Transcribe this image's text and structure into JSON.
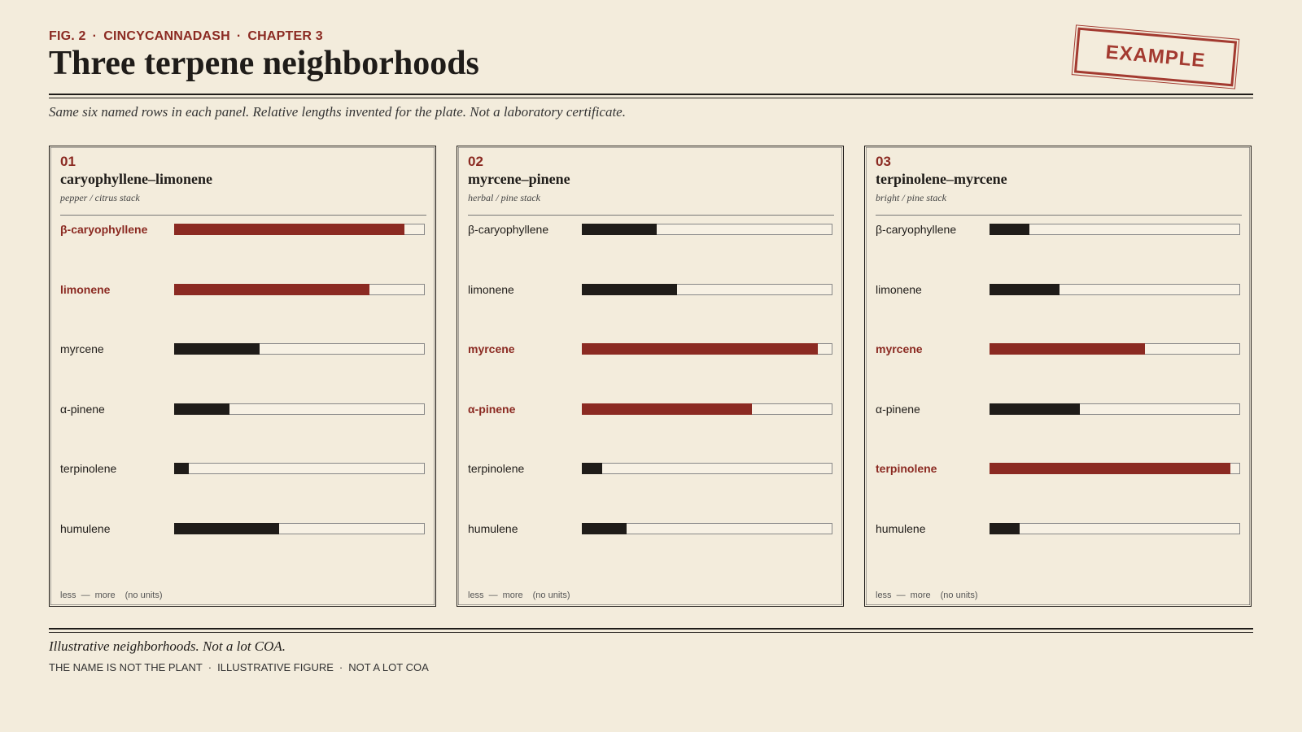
{
  "header": {
    "kicker": [
      "FIG. 2",
      "CINCYCANNADASH",
      "CHAPTER 3"
    ],
    "title": "Three terpene neighborhoods",
    "subtitle": "Same six named rows in each panel. Relative lengths invented for the plate. Not a laboratory certificate.",
    "stamp": "EXAMPLE"
  },
  "chart_data": [
    {
      "type": "bar",
      "orientation": "horizontal",
      "number": "01",
      "title": "caryophyllene–limonene",
      "subtitle": "pepper / citrus stack",
      "categories": [
        "β-caryophyllene",
        "limonene",
        "myrcene",
        "α-pinene",
        "terpinolene",
        "humulene"
      ],
      "values": [
        92,
        78,
        34,
        22,
        6,
        42
      ],
      "colors": [
        "#8b2a22",
        "#8b2a22",
        "#1f1c19",
        "#1f1c19",
        "#1f1c19",
        "#1f1c19"
      ],
      "xlim": [
        0,
        100
      ],
      "scale_note": {
        "low": "less",
        "high": "more",
        "units": "(no units)"
      }
    },
    {
      "type": "bar",
      "orientation": "horizontal",
      "number": "02",
      "title": "myrcene–pinene",
      "subtitle": "herbal / pine stack",
      "categories": [
        "β-caryophyllene",
        "limonene",
        "myrcene",
        "α-pinene",
        "terpinolene",
        "humulene"
      ],
      "values": [
        30,
        38,
        94,
        68,
        8,
        18
      ],
      "colors": [
        "#1f1c19",
        "#1f1c19",
        "#8b2a22",
        "#8b2a22",
        "#1f1c19",
        "#1f1c19"
      ],
      "xlim": [
        0,
        100
      ],
      "scale_note": {
        "low": "less",
        "high": "more",
        "units": "(no units)"
      }
    },
    {
      "type": "bar",
      "orientation": "horizontal",
      "number": "03",
      "title": "terpinolene–myrcene",
      "subtitle": "bright / pine stack",
      "categories": [
        "β-caryophyllene",
        "limonene",
        "myrcene",
        "α-pinene",
        "terpinolene",
        "humulene"
      ],
      "values": [
        16,
        28,
        62,
        36,
        96,
        12
      ],
      "colors": [
        "#1f1c19",
        "#1f1c19",
        "#8b2a22",
        "#1f1c19",
        "#8b2a22",
        "#1f1c19"
      ],
      "xlim": [
        0,
        100
      ],
      "scale_note": {
        "low": "less",
        "high": "more",
        "units": "(no units)"
      }
    }
  ],
  "footer": {
    "note": "Illustrative neighborhoods. Not a lot COA.",
    "tags": [
      "THE NAME IS NOT THE PLANT",
      "ILLUSTRATIVE FIGURE",
      "NOT A LOT COA"
    ]
  }
}
